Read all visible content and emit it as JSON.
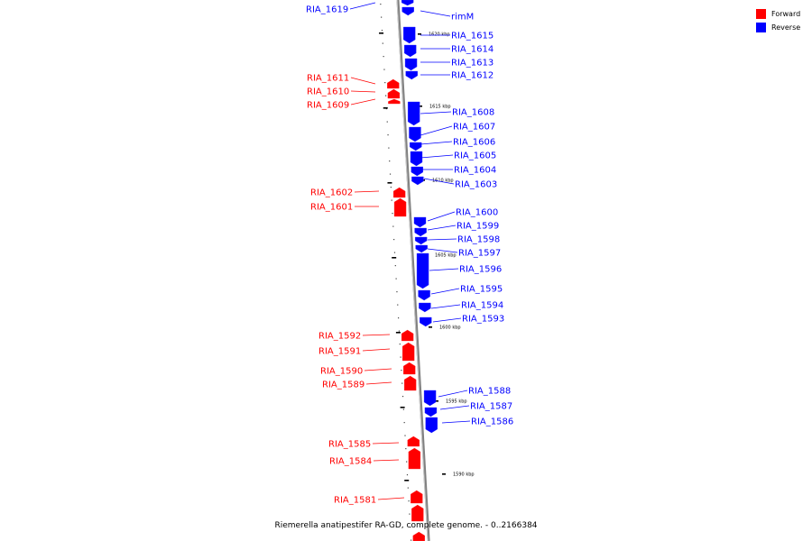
{
  "caption": "Riemerella anatipestifer RA-GD, complete genome. - 0..2166384",
  "legend": [
    {
      "label": "Forward",
      "color": "#ff0000"
    },
    {
      "label": "Reverse",
      "color": "#0000ff"
    }
  ],
  "colors": {
    "forward": "#ff0000",
    "reverse": "#0000ff",
    "axis": "#808080"
  },
  "scale_labels": [
    "1620 kbp",
    "1615 kbp",
    "1610 kbp",
    "1605 kbp",
    "1600 kbp",
    "1595 kbp",
    "1590 kbp"
  ],
  "forward_labels": [
    "RIA_1611",
    "RIA_1610",
    "RIA_1609",
    "RIA_1602",
    "RIA_1601",
    "RIA_1592",
    "RIA_1591",
    "RIA_1590",
    "RIA_1589",
    "RIA_1585",
    "RIA_1584",
    "RIA_1581"
  ],
  "reverse_labels": [
    "RIA_1619",
    "rimM",
    "RIA_1615",
    "RIA_1614",
    "RIA_1613",
    "RIA_1612",
    "RIA_1608",
    "RIA_1607",
    "RIA_1606",
    "RIA_1605",
    "RIA_1604",
    "RIA_1603",
    "RIA_1600",
    "RIA_1599",
    "RIA_1598",
    "RIA_1597",
    "RIA_1596",
    "RIA_1595",
    "RIA_1594",
    "RIA_1593",
    "RIA_1588",
    "RIA_1587",
    "RIA_1586"
  ]
}
